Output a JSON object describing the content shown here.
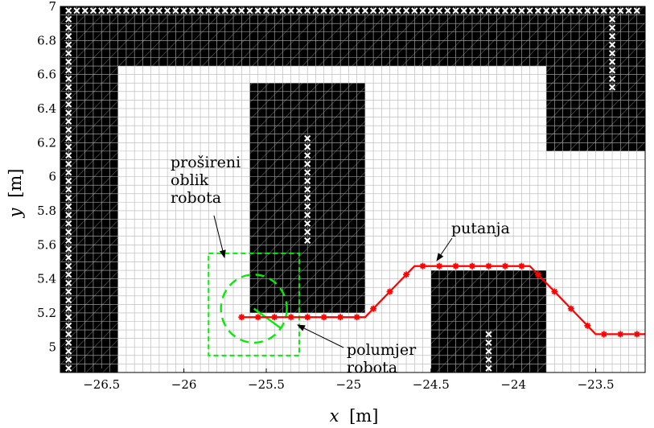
{
  "chart_data": {
    "type": "scatter",
    "xlabel_var": "x",
    "xlabel_unit": "[m]",
    "ylabel_var": "y",
    "ylabel_unit": "[m]",
    "xlim": [
      -26.75,
      -23.2
    ],
    "ylim": [
      4.85,
      7.0
    ],
    "cell_size": 0.05,
    "grid": true,
    "x_ticks": [
      -26.5,
      -26,
      -25.5,
      -25,
      -24.5,
      -24,
      -23.5
    ],
    "x_tick_labels": [
      "−26.5",
      "−26",
      "−25.5",
      "−25",
      "−24.5",
      "−24",
      "−23.5"
    ],
    "y_ticks": [
      5,
      5.2,
      5.4,
      5.6,
      5.8,
      6,
      6.2,
      6.4,
      6.6,
      6.8,
      7
    ],
    "y_tick_labels": [
      "5",
      "5.2",
      "5.4",
      "5.6",
      "5.8",
      "6",
      "6.2",
      "6.4",
      "6.6",
      "6.8",
      "7"
    ],
    "obstacles": [
      {
        "x": [
          -26.75,
          -23.2
        ],
        "y": [
          6.65,
          7.0
        ]
      },
      {
        "x": [
          -26.75,
          -26.4
        ],
        "y": [
          4.85,
          6.65
        ]
      },
      {
        "x": [
          -25.6,
          -24.9
        ],
        "y": [
          5.2,
          6.55
        ]
      },
      {
        "x": [
          -24.5,
          -23.8
        ],
        "y": [
          4.85,
          5.45
        ]
      },
      {
        "x": [
          -23.8,
          -23.2
        ],
        "y": [
          6.15,
          6.65
        ]
      }
    ],
    "boundary_cells": [
      {
        "x": [
          -26.7,
          -23.25
        ],
        "y": [
          6.975,
          6.975
        ]
      },
      {
        "x": [
          -26.7,
          -26.7
        ],
        "y": [
          4.875,
          6.925
        ]
      },
      {
        "x": [
          -23.4,
          -23.4
        ],
        "y": [
          6.525,
          6.925
        ]
      },
      {
        "x": [
          -25.25,
          -25.25
        ],
        "y": [
          5.625,
          6.225
        ]
      },
      {
        "x": [
          -24.15,
          -24.15
        ],
        "y": [
          4.875,
          5.075
        ]
      }
    ],
    "path": {
      "name": "putanja",
      "x": [
        -25.65,
        -25.6,
        -25.55,
        -25.5,
        -25.45,
        -25.4,
        -25.35,
        -25.3,
        -25.25,
        -25.2,
        -25.15,
        -25.1,
        -25.05,
        -25.0,
        -24.95,
        -24.9,
        -24.85,
        -24.8,
        -24.75,
        -24.7,
        -24.65,
        -24.6,
        -24.55,
        -24.5,
        -24.45,
        -24.4,
        -24.35,
        -24.3,
        -24.25,
        -24.2,
        -24.15,
        -24.1,
        -24.05,
        -24.0,
        -23.95,
        -23.9,
        -23.85,
        -23.8,
        -23.75,
        -23.7,
        -23.65,
        -23.6,
        -23.55,
        -23.5,
        -23.45,
        -23.4,
        -23.35,
        -23.3,
        -23.25,
        -23.2
      ],
      "y": [
        5.175,
        5.175,
        5.175,
        5.175,
        5.175,
        5.175,
        5.175,
        5.175,
        5.175,
        5.175,
        5.175,
        5.175,
        5.175,
        5.175,
        5.175,
        5.175,
        5.225,
        5.275,
        5.325,
        5.375,
        5.425,
        5.475,
        5.475,
        5.475,
        5.475,
        5.475,
        5.475,
        5.475,
        5.475,
        5.475,
        5.475,
        5.475,
        5.475,
        5.475,
        5.475,
        5.475,
        5.425,
        5.375,
        5.325,
        5.275,
        5.225,
        5.175,
        5.125,
        5.075,
        5.075,
        5.075,
        5.075,
        5.075,
        5.075,
        5.075
      ],
      "marker_every": 2,
      "color": "#ff0000",
      "marker_color": "#ff0000"
    },
    "robot": {
      "center": [
        -25.575,
        5.225
      ],
      "radius": 0.2,
      "footprint_x": [
        -25.85,
        -25.3
      ],
      "footprint_y": [
        4.95,
        5.55
      ],
      "color": "#00ee00"
    },
    "annotations": [
      {
        "lines": [
          "prošireni",
          "oblik",
          "robota"
        ],
        "anchor": "top-left of robot footprint"
      },
      {
        "lines": [
          "putanja"
        ],
        "anchor": "path rising segment"
      },
      {
        "lines": [
          "polumjer",
          "robota"
        ],
        "anchor": "robot circle edge"
      }
    ],
    "colors": {
      "obstacle": "#000000",
      "grid": "#b4b4b4",
      "boundary_marker": "#ffffff"
    }
  }
}
